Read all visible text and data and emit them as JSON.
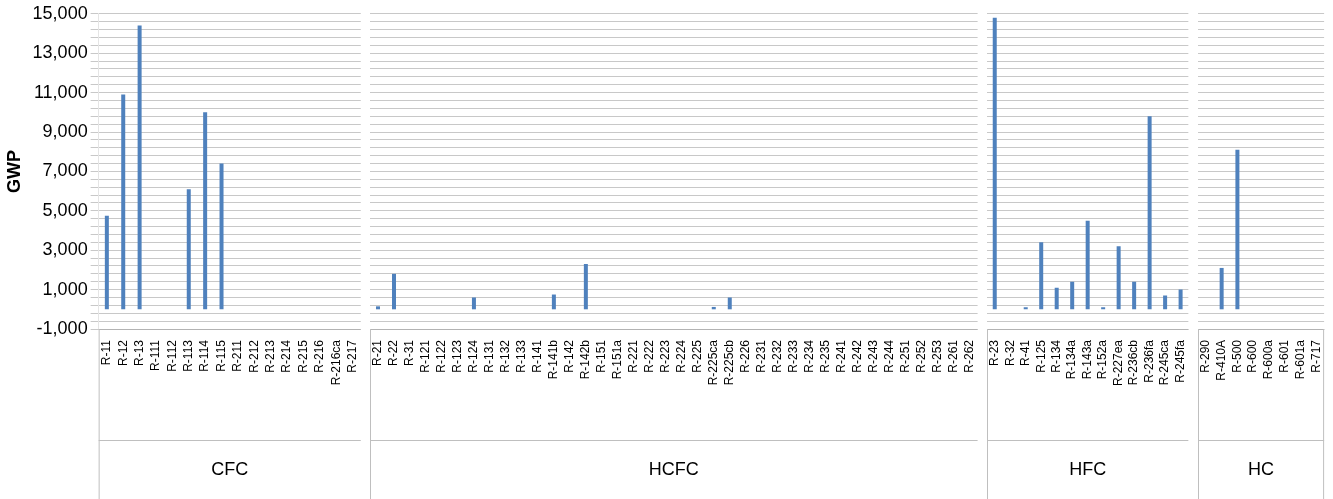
{
  "chart_data": [
    {
      "type": "bar",
      "ylabel": "GWP",
      "xlabel": "CFC",
      "categories": [
        "R-11",
        "R-12",
        "R-13",
        "R-111",
        "R-112",
        "R-113",
        "R-114",
        "R-115",
        "R-211",
        "R-212",
        "R-213",
        "R-214",
        "R-215",
        "R-216",
        "R-216ca",
        "R-217"
      ],
      "series": [
        {
          "color": "#4f81bd",
          "values": [
            4750,
            10900,
            14400,
            null,
            null,
            6100,
            10000,
            7400,
            null,
            null,
            null,
            null,
            null,
            null,
            null,
            null
          ]
        }
      ],
      "ylim": [
        -1000,
        15000
      ],
      "yticks": [
        {
          "value": -1000,
          "label": "-1,000"
        },
        {
          "value": -600,
          "label": null
        },
        {
          "value": -200,
          "label": null
        },
        {
          "value": 200,
          "label": null
        },
        {
          "value": 600,
          "label": null
        },
        {
          "value": 1000,
          "label": "1,000"
        },
        {
          "value": 1400,
          "label": null
        },
        {
          "value": 1800,
          "label": null
        },
        {
          "value": 2200,
          "label": null
        },
        {
          "value": 2600,
          "label": null
        },
        {
          "value": 3000,
          "label": "3,000"
        },
        {
          "value": 3400,
          "label": null
        },
        {
          "value": 3800,
          "label": null
        },
        {
          "value": 4200,
          "label": null
        },
        {
          "value": 4600,
          "label": null
        },
        {
          "value": 5000,
          "label": "5,000"
        },
        {
          "value": 5400,
          "label": null
        },
        {
          "value": 5800,
          "label": null
        },
        {
          "value": 6200,
          "label": null
        },
        {
          "value": 6600,
          "label": null
        },
        {
          "value": 7000,
          "label": "7,000"
        },
        {
          "value": 7400,
          "label": null
        },
        {
          "value": 7800,
          "label": null
        },
        {
          "value": 8200,
          "label": null
        },
        {
          "value": 8600,
          "label": null
        },
        {
          "value": 9000,
          "label": "9,000"
        },
        {
          "value": 9400,
          "label": null
        },
        {
          "value": 9800,
          "label": null
        },
        {
          "value": 10200,
          "label": null
        },
        {
          "value": 10600,
          "label": null
        },
        {
          "value": 11000,
          "label": "11,000"
        },
        {
          "value": 11400,
          "label": null
        },
        {
          "value": 11800,
          "label": null
        },
        {
          "value": 12200,
          "label": null
        },
        {
          "value": 12600,
          "label": null
        },
        {
          "value": 13000,
          "label": "13,000"
        },
        {
          "value": 13400,
          "label": null
        },
        {
          "value": 13800,
          "label": null
        },
        {
          "value": 14200,
          "label": null
        },
        {
          "value": 14600,
          "label": null
        },
        {
          "value": 15000,
          "label": "15,000"
        }
      ],
      "grid": "y"
    },
    {
      "type": "bar",
      "xlabel": "HCFC",
      "tick_labels": "x",
      "categories": [
        "R-21",
        "R-22",
        "R-31",
        "R-121",
        "R-122",
        "R-123",
        "R-124",
        "R-131",
        "R-132",
        "R-133",
        "R-141",
        "R-141b",
        "R-142",
        "R-142b",
        "R-151",
        "R-151a",
        "R-221",
        "R-222",
        "R-223",
        "R-224",
        "R-225",
        "R-225ca",
        "R-225cb",
        "R-226",
        "R-231",
        "R-232",
        "R-233",
        "R-234",
        "R-235",
        "R-241",
        "R-242",
        "R-243",
        "R-244",
        "R-251",
        "R-252",
        "R-253",
        "R-261",
        "R-262"
      ],
      "series": [
        {
          "color": "#4f81bd",
          "values": [
            150,
            1800,
            null,
            null,
            null,
            null,
            600,
            null,
            null,
            null,
            null,
            750,
            null,
            2300,
            null,
            null,
            null,
            null,
            null,
            null,
            null,
            120,
            600,
            null,
            null,
            null,
            null,
            null,
            null,
            null,
            null,
            null,
            null,
            null,
            null,
            null,
            null,
            null
          ]
        }
      ],
      "ylim": [
        -1000,
        15000
      ],
      "yticks": [
        -1000,
        -600,
        -200,
        200,
        600,
        1000,
        1400,
        1800,
        2200,
        2600,
        3000,
        3400,
        3800,
        4200,
        4600,
        5000,
        5400,
        5800,
        6200,
        6600,
        7000,
        7400,
        7800,
        8200,
        8600,
        9000,
        9400,
        9800,
        10200,
        10600,
        11000,
        11400,
        11800,
        12200,
        12600,
        13000,
        13400,
        13800,
        14200,
        14600,
        15000
      ],
      "grid": "y"
    },
    {
      "type": "bar",
      "xlabel": "HFC",
      "tick_labels": "x",
      "categories": [
        "R-23",
        "R-32",
        "R-41",
        "R-125",
        "R-134",
        "R-134a",
        "R-143a",
        "R-152a",
        "R-227ea",
        "R-236cb",
        "R-236fa",
        "R-245ca",
        "R-245fa"
      ],
      "series": [
        {
          "color": "#4f81bd",
          "values": [
            14800,
            null,
            100,
            3400,
            1100,
            1400,
            4500,
            100,
            3200,
            1400,
            9800,
            700,
            1000
          ]
        }
      ],
      "ylim": [
        -1000,
        15000
      ],
      "yticks": [
        -1000,
        -600,
        -200,
        200,
        600,
        1000,
        1400,
        1800,
        2200,
        2600,
        3000,
        3400,
        3800,
        4200,
        4600,
        5000,
        5400,
        5800,
        6200,
        6600,
        7000,
        7400,
        7800,
        8200,
        8600,
        9000,
        9400,
        9800,
        10200,
        10600,
        11000,
        11400,
        11800,
        12200,
        12600,
        13000,
        13400,
        13800,
        14200,
        14600,
        15000
      ],
      "grid": "y"
    },
    {
      "type": "bar",
      "xlabel": "HC",
      "tick_labels": "x",
      "categories": [
        "R-290",
        "R-410A",
        "R-500",
        "R-600",
        "R-600a",
        "R-601",
        "R-601a",
        "R-717"
      ],
      "series": [
        {
          "color": "#4f81bd",
          "values": [
            null,
            2100,
            8100,
            null,
            null,
            null,
            null,
            null
          ]
        }
      ],
      "ylim": [
        -1000,
        15000
      ],
      "yticks": [
        -1000,
        -600,
        -200,
        200,
        600,
        1000,
        1400,
        1800,
        2200,
        2600,
        3000,
        3400,
        3800,
        4200,
        4600,
        5000,
        5400,
        5800,
        6200,
        6600,
        7000,
        7400,
        7800,
        8200,
        8600,
        9000,
        9400,
        9800,
        10200,
        10600,
        11000,
        11400,
        11800,
        12200,
        12600,
        13000,
        13400,
        13800,
        14200,
        14600,
        15000
      ],
      "grid": "y"
    }
  ]
}
